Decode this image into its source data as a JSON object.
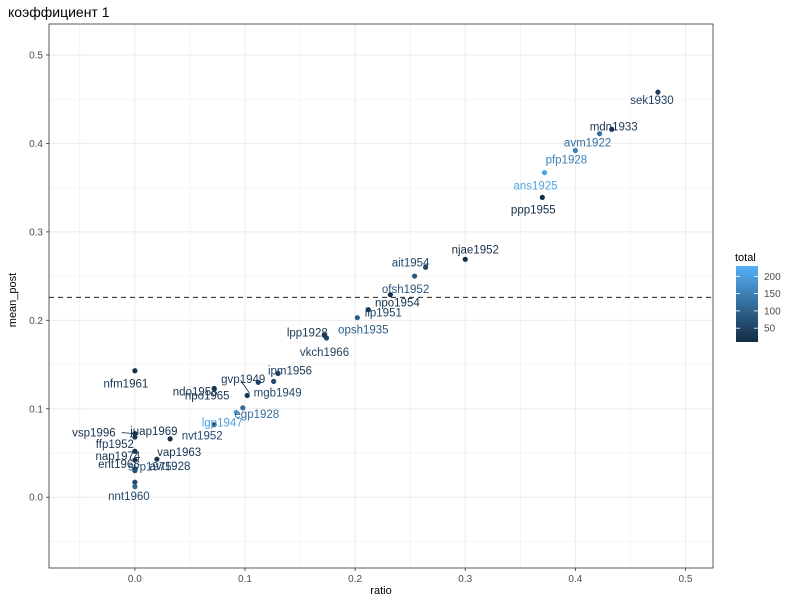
{
  "chart_data": {
    "type": "scatter",
    "title": "коэффициент 1",
    "xlabel": "ratio",
    "ylabel": "mean_post",
    "xlim": [
      -0.078,
      0.525
    ],
    "ylim": [
      -0.08,
      0.535
    ],
    "x_ticks": [
      0.0,
      0.1,
      0.2,
      0.3,
      0.4,
      0.5
    ],
    "x_tick_labels": [
      "0.0",
      "0.1",
      "0.2",
      "0.3",
      "0.4",
      "0.5"
    ],
    "y_ticks": [
      0.0,
      0.1,
      0.2,
      0.3,
      0.4,
      0.5
    ],
    "y_tick_labels": [
      "0.0",
      "0.1",
      "0.2",
      "0.3",
      "0.4",
      "0.5"
    ],
    "grid": true,
    "hline": 0.226,
    "color_scale": {
      "name": "total",
      "min": 10,
      "max": 230,
      "low_color": "#132b43",
      "high_color": "#56b1f7",
      "breaks": [
        50,
        100,
        150,
        200
      ],
      "break_labels": [
        "50",
        "100",
        "150",
        "200"
      ]
    },
    "legend_position": "right",
    "points": [
      {
        "label": "sek1930",
        "x": 0.475,
        "y": 0.458,
        "total": 40
      },
      {
        "label": "mdn1933",
        "x": 0.433,
        "y": 0.416,
        "total": 30
      },
      {
        "label": "avm1922",
        "x": 0.422,
        "y": 0.411,
        "total": 120
      },
      {
        "label": "pfp1928",
        "x": 0.4,
        "y": 0.392,
        "total": 150
      },
      {
        "label": "ans1925",
        "x": 0.372,
        "y": 0.367,
        "total": 210
      },
      {
        "label": "ppp1955",
        "x": 0.37,
        "y": 0.339,
        "total": 15
      },
      {
        "label": "njae1952",
        "x": 0.3,
        "y": 0.269,
        "total": 15
      },
      {
        "label": "ait1954",
        "x": 0.264,
        "y": 0.26,
        "total": 60
      },
      {
        "label": "ofsh1952",
        "x": 0.254,
        "y": 0.25,
        "total": 80
      },
      {
        "label": "npo1954",
        "x": 0.232,
        "y": 0.229,
        "total": 20
      },
      {
        "label": "iip1951",
        "x": 0.212,
        "y": 0.212,
        "total": 40
      },
      {
        "label": "opsh1935",
        "x": 0.202,
        "y": 0.203,
        "total": 90
      },
      {
        "label": "lpp1928",
        "x": 0.172,
        "y": 0.183,
        "total": 30
      },
      {
        "label": "vkch1966",
        "x": 0.174,
        "y": 0.18,
        "total": 50
      },
      {
        "label": "nfm1961",
        "x": 0.0,
        "y": 0.143,
        "total": 20
      },
      {
        "label": "ipm1956",
        "x": 0.13,
        "y": 0.14,
        "total": 45
      },
      {
        "label": "gvp1949",
        "x": 0.112,
        "y": 0.13,
        "total": 40
      },
      {
        "label": "ndo1958",
        "x": 0.072,
        "y": 0.123,
        "total": 25
      },
      {
        "label": "mgb1949",
        "x": 0.126,
        "y": 0.131,
        "total": 60
      },
      {
        "label": "npo1965",
        "x": 0.102,
        "y": 0.115,
        "total": 30
      },
      {
        "label": "egp1928",
        "x": 0.098,
        "y": 0.101,
        "total": 120
      },
      {
        "label": "lgp1947",
        "x": 0.092,
        "y": 0.096,
        "total": 200
      },
      {
        "label": "nvt1952",
        "x": 0.072,
        "y": 0.082,
        "total": 60
      },
      {
        "label": "vsp1996",
        "x": 0.0,
        "y": 0.072,
        "total": 20
      },
      {
        "label": "juap1969",
        "x": 0.0,
        "y": 0.068,
        "total": 25
      },
      {
        "label": "vap1963",
        "x": 0.032,
        "y": 0.066,
        "total": 25
      },
      {
        "label": "ffp1952",
        "x": 0.0,
        "y": 0.052,
        "total": 30
      },
      {
        "label": "nap1974",
        "x": 0.0,
        "y": 0.042,
        "total": 25
      },
      {
        "label": "avt1928",
        "x": 0.02,
        "y": 0.043,
        "total": 30
      },
      {
        "label": "ent1968",
        "x": 0.0,
        "y": 0.032,
        "total": 30
      },
      {
        "label": "svp1975",
        "x": 0.0,
        "y": 0.03,
        "total": 70
      },
      {
        "label": "nnt1960",
        "x": 0.0,
        "y": 0.017,
        "total": 60
      },
      {
        "label": "",
        "x": 0.0,
        "y": 0.012,
        "total": 110
      }
    ]
  }
}
